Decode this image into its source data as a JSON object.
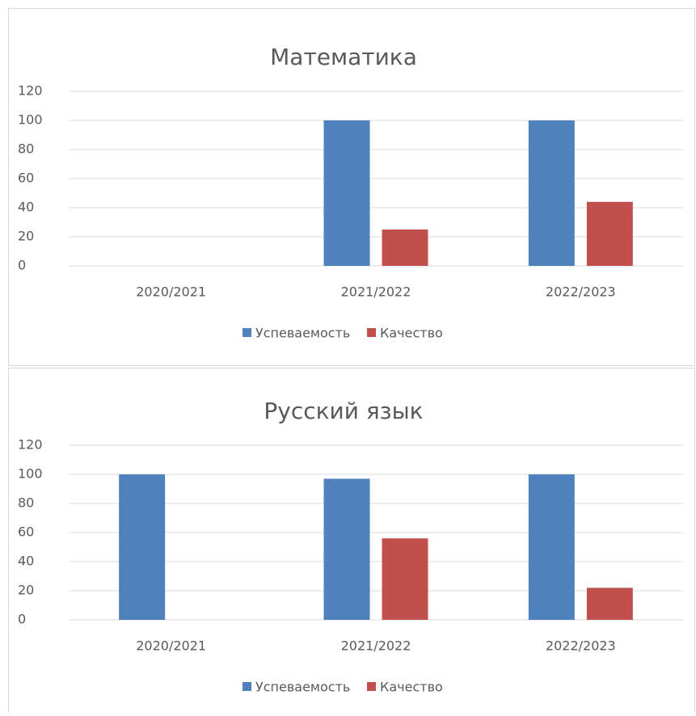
{
  "chart_data": [
    {
      "type": "bar",
      "title": "Математика",
      "categories": [
        "2020/2021",
        "2021/2022",
        "2022/2023"
      ],
      "series": [
        {
          "name": "Успеваемость",
          "color": "#4f81bd",
          "values": [
            0,
            100,
            100
          ]
        },
        {
          "name": "Качество",
          "color": "#c0504d",
          "values": [
            0,
            25,
            44
          ]
        }
      ],
      "ylim": [
        0,
        120
      ],
      "yticks": [
        0,
        20,
        40,
        60,
        80,
        100,
        120
      ],
      "grid": true,
      "legend": "bottom"
    },
    {
      "type": "bar",
      "title": "Русский язык",
      "categories": [
        "2020/2021",
        "2021/2022",
        "2022/2023"
      ],
      "series": [
        {
          "name": "Успеваемость",
          "color": "#4f81bd",
          "values": [
            100,
            97,
            100
          ]
        },
        {
          "name": "Качество",
          "color": "#c0504d",
          "values": [
            0,
            56,
            22
          ]
        }
      ],
      "ylim": [
        0,
        120
      ],
      "yticks": [
        0,
        20,
        40,
        60,
        80,
        100,
        120
      ],
      "grid": true,
      "legend": "bottom"
    }
  ]
}
